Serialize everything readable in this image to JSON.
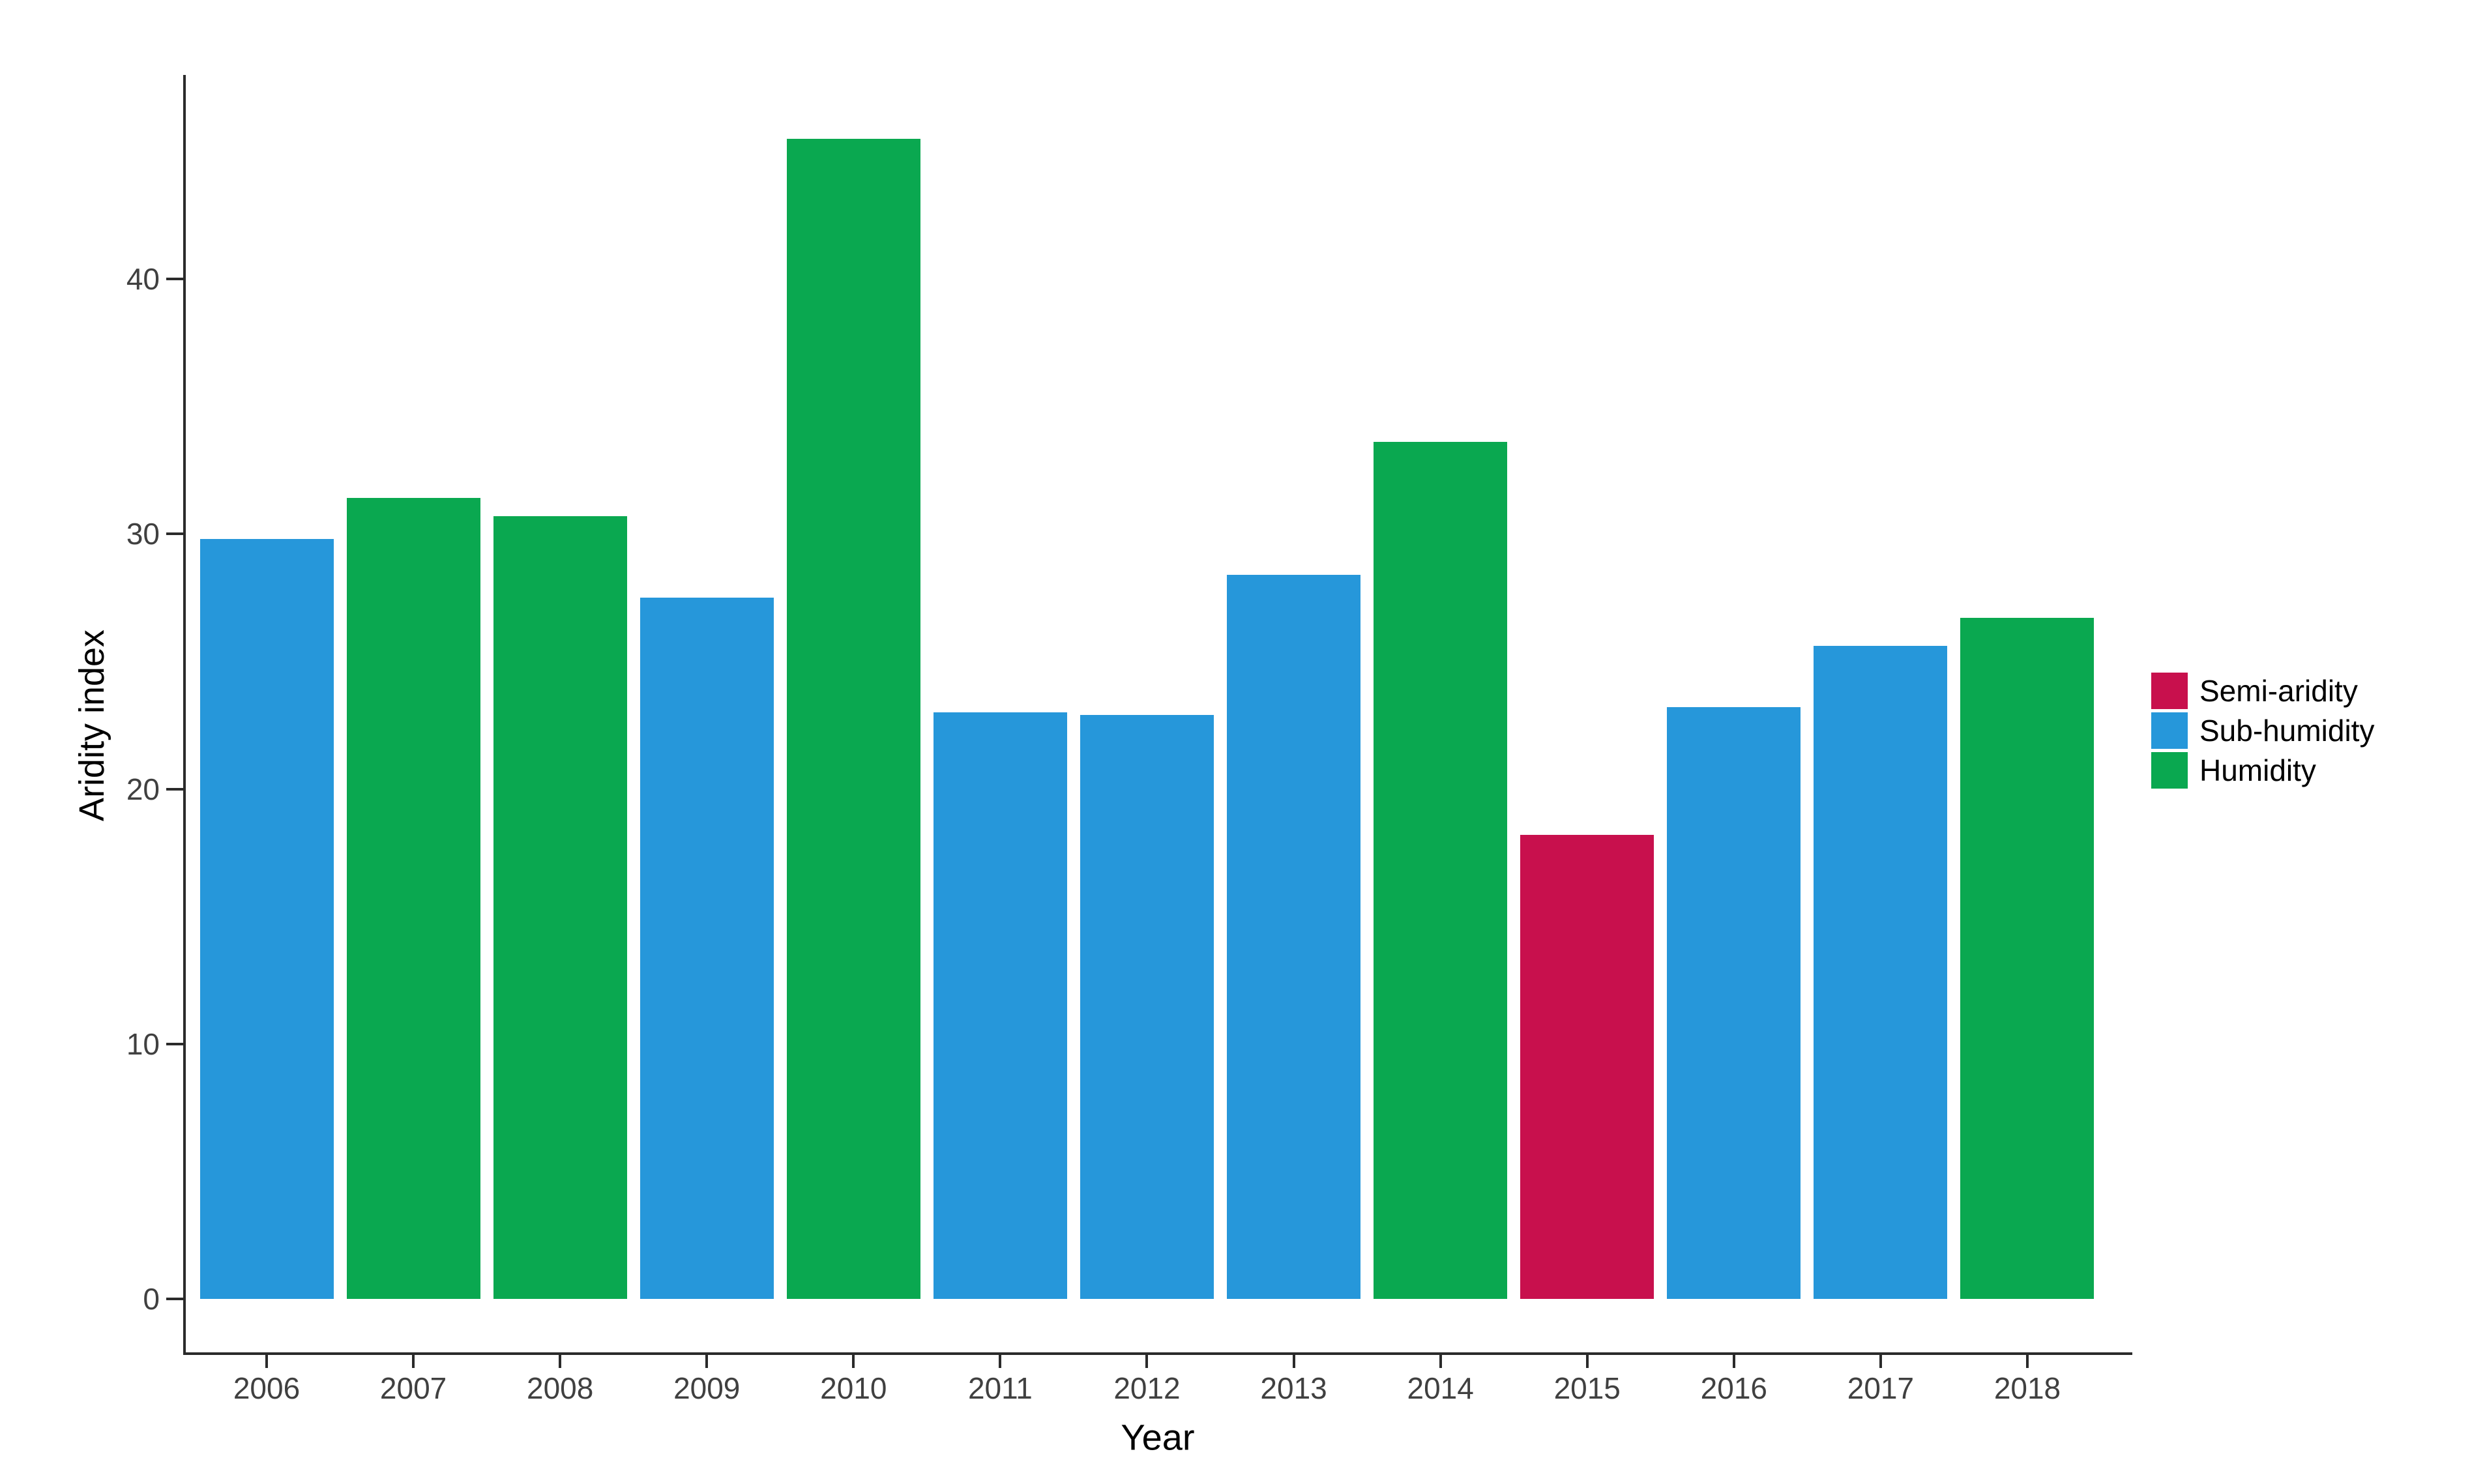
{
  "chart_data": {
    "type": "bar",
    "title": "",
    "xlabel": "Year",
    "ylabel": "Aridity index",
    "categories": [
      "2006",
      "2007",
      "2008",
      "2009",
      "2010",
      "2011",
      "2012",
      "2013",
      "2014",
      "2015",
      "2016",
      "2017",
      "2018"
    ],
    "values": [
      29.8,
      31.4,
      30.7,
      27.5,
      45.5,
      23.0,
      22.9,
      28.4,
      33.6,
      18.2,
      23.2,
      25.6,
      26.7
    ],
    "classes": [
      "Sub-humidity",
      "Humidity",
      "Humidity",
      "Sub-humidity",
      "Humidity",
      "Sub-humidity",
      "Sub-humidity",
      "Sub-humidity",
      "Humidity",
      "Semi-aridity",
      "Sub-humidity",
      "Sub-humidity",
      "Humidity"
    ],
    "colors": {
      "Semi-aridity": "#C8104D",
      "Sub-humidity": "#2697DA",
      "Humidity": "#0AA850"
    },
    "legend": [
      {
        "label": "Semi-aridity",
        "color": "#C8104D"
      },
      {
        "label": "Sub-humidity",
        "color": "#2697DA"
      },
      {
        "label": "Humidity",
        "color": "#0AA850"
      }
    ],
    "legend_position": "right",
    "yticks": [
      0,
      10,
      20,
      30,
      40
    ],
    "ylim": [
      0,
      48
    ],
    "grid": false,
    "axis_color": "#2b2b2b",
    "tick_text_color": "#404040"
  }
}
